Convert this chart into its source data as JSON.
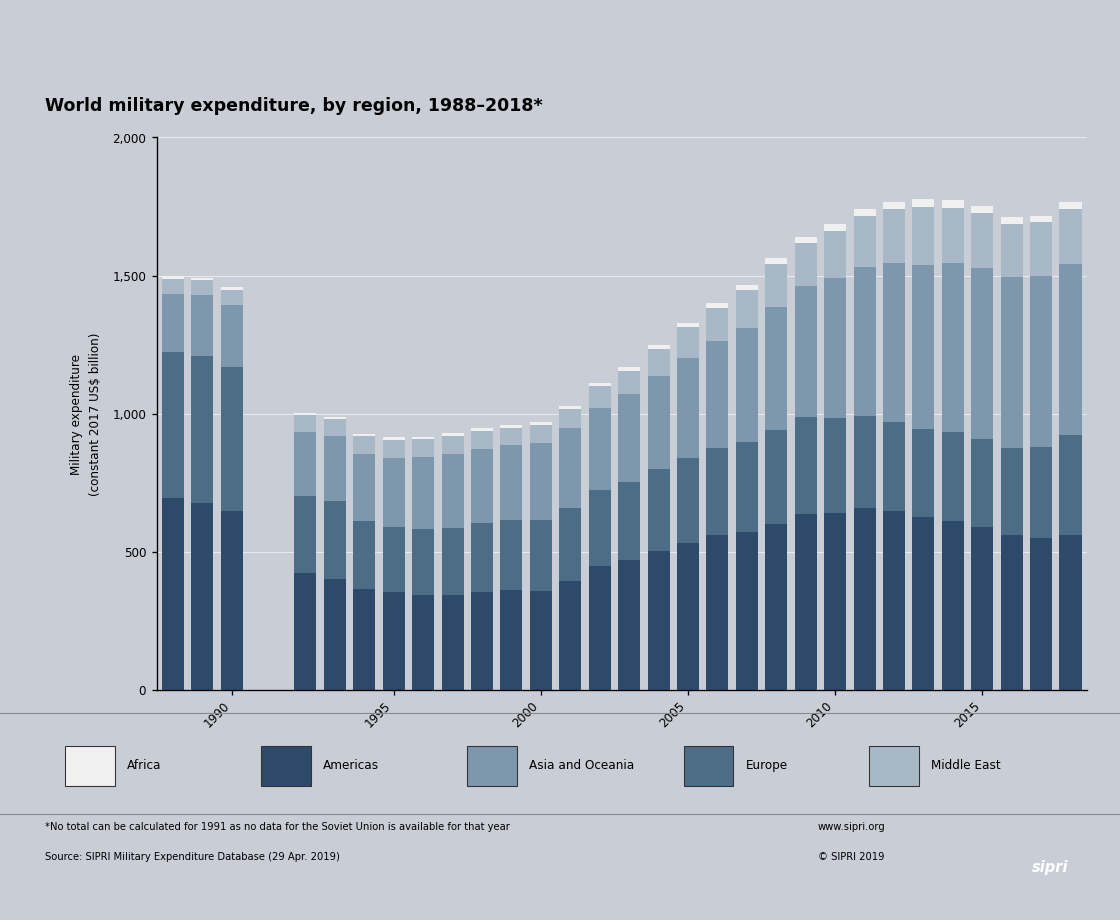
{
  "title": "World military expenditure, by region, 1988–2018*",
  "ylabel": "Military expenditure\n(constant 2017 US$ billion)",
  "ylim": [
    0,
    2000
  ],
  "yticks": [
    0,
    500,
    1000,
    1500,
    2000
  ],
  "background_color": "#c9cdd6",
  "note_line1": "*No total can be calculated for 1991 as no data for the Soviet Union is available for that year",
  "note_line2": "Source: SIPRI Military Expenditure Database (29 Apr. 2019)",
  "website": "www.sipri.org",
  "copyright": "© SIPRI 2019",
  "regions_order": [
    "Americas",
    "Europe",
    "Asia and Oceania",
    "Middle East",
    "Africa"
  ],
  "legend_order": [
    "Africa",
    "Americas",
    "Asia and Oceania",
    "Europe",
    "Middle East"
  ],
  "colors": {
    "Africa": "#f0f0f0",
    "Americas": "#2e4a6b",
    "Asia and Oceania": "#7d97ad",
    "Europe": "#4d6d87",
    "Middle East": "#a8b8c6"
  },
  "years": [
    1988,
    1989,
    1990,
    1992,
    1993,
    1994,
    1995,
    1996,
    1997,
    1998,
    1999,
    2000,
    2001,
    2002,
    2003,
    2004,
    2005,
    2006,
    2007,
    2008,
    2009,
    2010,
    2011,
    2012,
    2013,
    2014,
    2015,
    2016,
    2017,
    2018
  ],
  "data": {
    "Africa": [
      9,
      9,
      9,
      9,
      9,
      9,
      9,
      9,
      9,
      10,
      10,
      10,
      10,
      11,
      12,
      14,
      15,
      17,
      19,
      22,
      23,
      24,
      25,
      27,
      28,
      27,
      26,
      25,
      24,
      24
    ],
    "Americas": [
      693,
      678,
      649,
      424,
      403,
      365,
      353,
      345,
      345,
      356,
      360,
      358,
      393,
      450,
      469,
      502,
      533,
      559,
      570,
      600,
      638,
      639,
      660,
      648,
      626,
      610,
      591,
      562,
      548,
      562
    ],
    "Asia and Oceania": [
      208,
      218,
      224,
      232,
      236,
      243,
      249,
      260,
      270,
      270,
      272,
      279,
      290,
      298,
      318,
      340,
      364,
      388,
      413,
      447,
      475,
      508,
      539,
      575,
      594,
      610,
      617,
      617,
      617,
      620
    ],
    "Europe": [
      532,
      532,
      521,
      279,
      279,
      246,
      237,
      237,
      240,
      247,
      254,
      258,
      265,
      273,
      284,
      296,
      305,
      316,
      326,
      340,
      349,
      345,
      333,
      323,
      318,
      325,
      318,
      314,
      333,
      360
    ],
    "Middle East": [
      55,
      55,
      55,
      60,
      62,
      64,
      66,
      66,
      65,
      65,
      63,
      65,
      70,
      80,
      85,
      95,
      112,
      120,
      138,
      155,
      155,
      170,
      185,
      195,
      210,
      200,
      200,
      195,
      195,
      200
    ]
  }
}
